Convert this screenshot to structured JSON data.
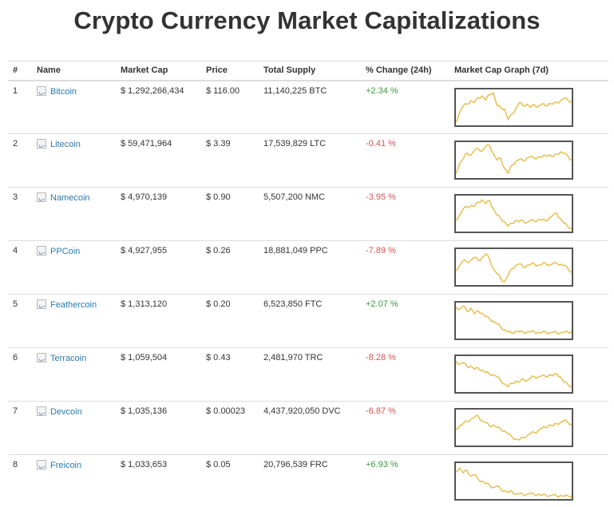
{
  "title": "Crypto Currency Market Capitalizations",
  "columns": [
    "#",
    "Name",
    "Market Cap",
    "Price",
    "Total Supply",
    "% Change (24h)",
    "Market Cap Graph (7d)"
  ],
  "colors": {
    "link": "#2a7ab0",
    "positive": "#3c9a3c",
    "negative": "#d9534f",
    "spark_line": "#e8c25a",
    "spark_border": "#555555"
  },
  "rows": [
    {
      "rank": "1",
      "name": "Bitcoin",
      "market_cap": "$ 1,292,266,434",
      "price": "$ 116.00",
      "supply": "11,140,225 BTC",
      "change": "+2.34 %",
      "direction": "up",
      "graph_7d": [
        0.05,
        0.35,
        0.55,
        0.6,
        0.7,
        0.65,
        0.8,
        0.85,
        0.72,
        0.9,
        0.95,
        0.55,
        0.5,
        0.45,
        0.12,
        0.3,
        0.45,
        0.65,
        0.55,
        0.6,
        0.5,
        0.58,
        0.52,
        0.6,
        0.55,
        0.62,
        0.6,
        0.65,
        0.7,
        0.78,
        0.72,
        0.68
      ]
    },
    {
      "rank": "2",
      "name": "Litecoin",
      "market_cap": "$ 59,471,964",
      "price": "$ 3.39",
      "supply": "17,539,829 LTC",
      "change": "-0.41 %",
      "direction": "down",
      "graph_7d": [
        0.1,
        0.4,
        0.55,
        0.72,
        0.65,
        0.8,
        0.85,
        0.78,
        0.92,
        0.95,
        0.7,
        0.5,
        0.55,
        0.25,
        0.1,
        0.35,
        0.45,
        0.52,
        0.48,
        0.56,
        0.6,
        0.55,
        0.6,
        0.58,
        0.64,
        0.66,
        0.6,
        0.68,
        0.75,
        0.7,
        0.62,
        0.5
      ]
    },
    {
      "rank": "3",
      "name": "Namecoin",
      "market_cap": "$ 4,970,139",
      "price": "$ 0.90",
      "supply": "5,507,200 NMC",
      "change": "-3.95 %",
      "direction": "down",
      "graph_7d": [
        0.3,
        0.45,
        0.65,
        0.7,
        0.75,
        0.72,
        0.85,
        0.92,
        0.8,
        0.9,
        0.65,
        0.45,
        0.35,
        0.25,
        0.12,
        0.2,
        0.3,
        0.25,
        0.28,
        0.22,
        0.3,
        0.26,
        0.32,
        0.3,
        0.28,
        0.36,
        0.45,
        0.5,
        0.35,
        0.2,
        0.1,
        0.05
      ]
    },
    {
      "rank": "4",
      "name": "PPCoin",
      "market_cap": "$ 4,927,955",
      "price": "$ 0.26",
      "supply": "18,881,049 PPC",
      "change": "-7.89 %",
      "direction": "down",
      "graph_7d": [
        0.4,
        0.55,
        0.7,
        0.65,
        0.72,
        0.8,
        0.7,
        0.78,
        0.9,
        0.75,
        0.45,
        0.3,
        0.15,
        0.05,
        0.25,
        0.45,
        0.55,
        0.6,
        0.5,
        0.55,
        0.58,
        0.6,
        0.55,
        0.58,
        0.62,
        0.56,
        0.6,
        0.62,
        0.58,
        0.55,
        0.45,
        0.35
      ]
    },
    {
      "rank": "5",
      "name": "Feathercoin",
      "market_cap": "$ 1,313,120",
      "price": "$ 0.20",
      "supply": "6,523,850 FTC",
      "change": "+2.07 %",
      "direction": "up",
      "graph_7d": [
        0.92,
        0.85,
        0.95,
        0.78,
        0.88,
        0.7,
        0.8,
        0.72,
        0.62,
        0.55,
        0.48,
        0.4,
        0.3,
        0.22,
        0.15,
        0.12,
        0.18,
        0.16,
        0.14,
        0.15,
        0.16,
        0.15,
        0.14,
        0.13,
        0.15,
        0.12,
        0.14,
        0.12,
        0.13,
        0.14,
        0.15,
        0.16
      ]
    },
    {
      "rank": "6",
      "name": "Terracoin",
      "market_cap": "$ 1,059,504",
      "price": "$ 0.43",
      "supply": "2,481,970 TRC",
      "change": "-8.28 %",
      "direction": "down",
      "graph_7d": [
        0.9,
        0.8,
        0.85,
        0.72,
        0.75,
        0.65,
        0.68,
        0.62,
        0.55,
        0.5,
        0.48,
        0.42,
        0.3,
        0.2,
        0.12,
        0.22,
        0.28,
        0.25,
        0.35,
        0.3,
        0.38,
        0.42,
        0.4,
        0.45,
        0.42,
        0.48,
        0.45,
        0.5,
        0.42,
        0.25,
        0.18,
        0.12
      ]
    },
    {
      "rank": "7",
      "name": "Devcoin",
      "market_cap": "$ 1,035,136",
      "price": "$ 0.00023",
      "supply": "4,437,920,050 DVC",
      "change": "-6.87 %",
      "direction": "down",
      "graph_7d": [
        0.45,
        0.55,
        0.62,
        0.7,
        0.75,
        0.82,
        0.85,
        0.7,
        0.65,
        0.55,
        0.58,
        0.5,
        0.45,
        0.4,
        0.3,
        0.22,
        0.15,
        0.12,
        0.2,
        0.25,
        0.32,
        0.35,
        0.4,
        0.48,
        0.5,
        0.58,
        0.55,
        0.62,
        0.65,
        0.72,
        0.65,
        0.6
      ]
    },
    {
      "rank": "8",
      "name": "Freicoin",
      "market_cap": "$ 1,033,653",
      "price": "$ 0.05",
      "supply": "20,796,539 FRC",
      "change": "+6.93 %",
      "direction": "up",
      "graph_7d": [
        0.8,
        0.9,
        0.75,
        0.82,
        0.65,
        0.7,
        0.55,
        0.5,
        0.42,
        0.38,
        0.3,
        0.35,
        0.25,
        0.2,
        0.15,
        0.18,
        0.1,
        0.12,
        0.08,
        0.1,
        0.12,
        0.08,
        0.1,
        0.06,
        0.08,
        0.05,
        0.07,
        0.04,
        0.06,
        0.03,
        0.05,
        0.04
      ]
    }
  ]
}
